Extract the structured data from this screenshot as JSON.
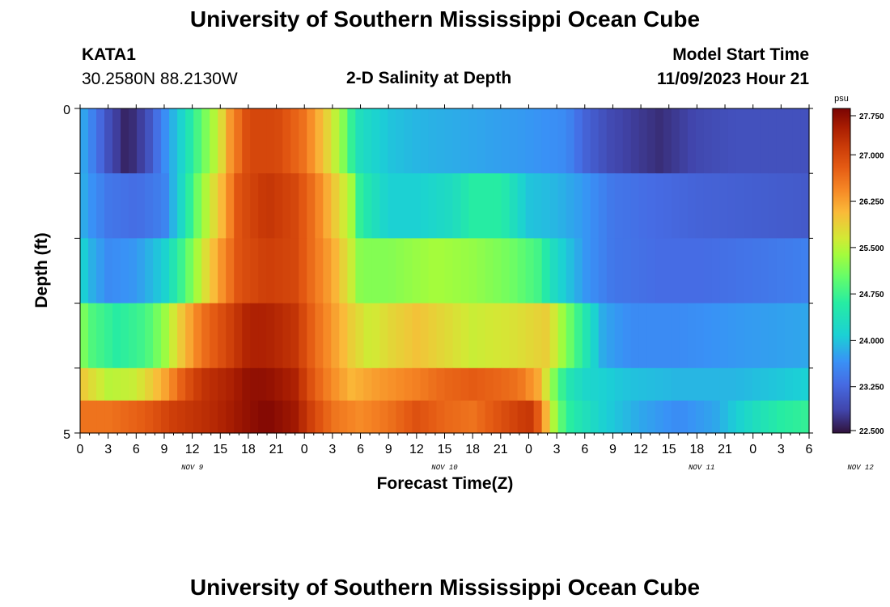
{
  "header": {
    "title": "University of Southern Mississippi Ocean Cube",
    "station": "KATA1",
    "coords": "30.2580N  88.2130W",
    "chart_title": "2-D Salinity at Depth",
    "model_start_label": "Model Start Time",
    "model_start_value": "11/09/2023 Hour 21"
  },
  "footer": {
    "title": "University of Southern Mississippi Ocean Cube"
  },
  "chart_data": {
    "type": "heatmap",
    "title": "2-D Salinity at Depth",
    "xlabel": "Forecast Time(Z)",
    "ylabel": "Depth (ft)",
    "colorbar_unit": "psu",
    "colorbar_ticks": [
      "27.750",
      "27.000",
      "26.250",
      "25.500",
      "24.750",
      "24.000",
      "23.250",
      "22.500"
    ],
    "color_range": [
      22.5,
      27.75
    ],
    "y_ticks": [
      "0",
      "5"
    ],
    "ylim": [
      0,
      5
    ],
    "x_tick_labels": [
      "0",
      "3",
      "6",
      "9",
      "12",
      "15",
      "18",
      "21",
      "0",
      "3",
      "6",
      "9",
      "12",
      "15",
      "18",
      "21",
      "0",
      "3",
      "6",
      "9",
      "12",
      "15",
      "18",
      "21",
      "0",
      "3",
      "6"
    ],
    "day_labels": [
      {
        "label": "NOV 9",
        "hour": 12
      },
      {
        "label": "NOV 10",
        "hour": 39
      },
      {
        "label": "NOV 11",
        "hour": 66.5
      },
      {
        "label": "NOV 12",
        "hour": 83.5
      }
    ],
    "x_hours": [
      0,
      78
    ],
    "rows": [
      {
        "depth_range": "0-1",
        "keyframes": [
          [
            0,
            23.9
          ],
          [
            1,
            23.6
          ],
          [
            3,
            23.0
          ],
          [
            5,
            22.6
          ],
          [
            7,
            22.9
          ],
          [
            9,
            23.6
          ],
          [
            11,
            24.2
          ],
          [
            13,
            25.0
          ],
          [
            15,
            25.7
          ],
          [
            16,
            26.3
          ],
          [
            18,
            27.0
          ],
          [
            21,
            27.0
          ],
          [
            24,
            26.6
          ],
          [
            26,
            26.0
          ],
          [
            28,
            25.3
          ],
          [
            29,
            24.7
          ],
          [
            30,
            24.3
          ],
          [
            33,
            24.0
          ],
          [
            36,
            23.9
          ],
          [
            42,
            23.8
          ],
          [
            48,
            23.7
          ],
          [
            52,
            23.6
          ],
          [
            54,
            23.2
          ],
          [
            57,
            22.9
          ],
          [
            62,
            22.7
          ],
          [
            66,
            22.9
          ],
          [
            70,
            23.0
          ],
          [
            78,
            23.0
          ]
        ]
      },
      {
        "depth_range": "1-2",
        "keyframes": [
          [
            0,
            23.9
          ],
          [
            1,
            23.7
          ],
          [
            3,
            23.4
          ],
          [
            6,
            23.3
          ],
          [
            9,
            23.5
          ],
          [
            11,
            24.3
          ],
          [
            13,
            25.3
          ],
          [
            15,
            26.0
          ],
          [
            17,
            26.9
          ],
          [
            20,
            27.2
          ],
          [
            23,
            27.0
          ],
          [
            25,
            26.6
          ],
          [
            27,
            26.0
          ],
          [
            29,
            25.4
          ],
          [
            30,
            24.6
          ],
          [
            33,
            24.1
          ],
          [
            36,
            24.1
          ],
          [
            40,
            24.3
          ],
          [
            42,
            24.6
          ],
          [
            45,
            24.6
          ],
          [
            48,
            24.0
          ],
          [
            51,
            23.9
          ],
          [
            54,
            23.7
          ],
          [
            57,
            23.4
          ],
          [
            61,
            23.3
          ],
          [
            66,
            23.2
          ],
          [
            78,
            23.1
          ]
        ]
      },
      {
        "depth_range": "2-3",
        "keyframes": [
          [
            0,
            24.2
          ],
          [
            1,
            23.9
          ],
          [
            3,
            23.6
          ],
          [
            6,
            23.7
          ],
          [
            9,
            24.1
          ],
          [
            11,
            24.8
          ],
          [
            13,
            25.6
          ],
          [
            15,
            26.3
          ],
          [
            17,
            26.9
          ],
          [
            20,
            27.1
          ],
          [
            23,
            27.0
          ],
          [
            25,
            26.6
          ],
          [
            27,
            26.2
          ],
          [
            29,
            25.6
          ],
          [
            30,
            25.2
          ],
          [
            33,
            25.2
          ],
          [
            38,
            25.4
          ],
          [
            42,
            25.3
          ],
          [
            46,
            25.1
          ],
          [
            49,
            24.8
          ],
          [
            51,
            24.2
          ],
          [
            54,
            23.7
          ],
          [
            57,
            23.4
          ],
          [
            62,
            23.3
          ],
          [
            67,
            23.3
          ],
          [
            73,
            23.4
          ],
          [
            78,
            23.5
          ]
        ]
      },
      {
        "depth_range": "3-4",
        "keyframes": [
          [
            0,
            25.3
          ],
          [
            1,
            24.9
          ],
          [
            4,
            24.6
          ],
          [
            7,
            24.8
          ],
          [
            9,
            25.3
          ],
          [
            11,
            26.0
          ],
          [
            13,
            26.6
          ],
          [
            15,
            26.9
          ],
          [
            18,
            27.4
          ],
          [
            20,
            27.4
          ],
          [
            23,
            27.2
          ],
          [
            25,
            26.7
          ],
          [
            27,
            26.3
          ],
          [
            29,
            25.9
          ],
          [
            31,
            25.6
          ],
          [
            33,
            25.8
          ],
          [
            36,
            26.0
          ],
          [
            39,
            25.8
          ],
          [
            42,
            25.6
          ],
          [
            46,
            25.7
          ],
          [
            50,
            25.9
          ],
          [
            52,
            25.2
          ],
          [
            54,
            24.5
          ],
          [
            56,
            23.8
          ],
          [
            59,
            23.6
          ],
          [
            64,
            23.6
          ],
          [
            70,
            23.7
          ],
          [
            78,
            23.8
          ]
        ]
      },
      {
        "depth_range": "4-5",
        "keyframes": [
          [
            0,
            26.0
          ],
          [
            1,
            25.8
          ],
          [
            3,
            25.5
          ],
          [
            6,
            25.6
          ],
          [
            9,
            26.2
          ],
          [
            11,
            26.8
          ],
          [
            13,
            27.2
          ],
          [
            16,
            27.4
          ],
          [
            18,
            27.6
          ],
          [
            20,
            27.6
          ],
          [
            23,
            27.4
          ],
          [
            25,
            26.8
          ],
          [
            27,
            26.4
          ],
          [
            29,
            26.1
          ],
          [
            32,
            26.3
          ],
          [
            36,
            26.5
          ],
          [
            39,
            26.7
          ],
          [
            42,
            26.8
          ],
          [
            45,
            26.7
          ],
          [
            47,
            26.6
          ],
          [
            49,
            26.2
          ],
          [
            50,
            25.6
          ],
          [
            51,
            25.0
          ],
          [
            52,
            24.5
          ],
          [
            54,
            24.2
          ],
          [
            58,
            24.0
          ],
          [
            64,
            23.9
          ],
          [
            70,
            23.9
          ],
          [
            78,
            24.1
          ]
        ]
      },
      {
        "depth_range": "5",
        "keyframes": [
          [
            0,
            26.6
          ],
          [
            3,
            26.6
          ],
          [
            7,
            26.8
          ],
          [
            10,
            27.1
          ],
          [
            14,
            27.3
          ],
          [
            18,
            27.6
          ],
          [
            20,
            27.7
          ],
          [
            23,
            27.5
          ],
          [
            25,
            27.0
          ],
          [
            27,
            26.6
          ],
          [
            30,
            26.4
          ],
          [
            33,
            26.6
          ],
          [
            36,
            26.9
          ],
          [
            39,
            26.7
          ],
          [
            42,
            26.6
          ],
          [
            45,
            26.9
          ],
          [
            48,
            27.2
          ],
          [
            49,
            26.8
          ],
          [
            50,
            26.0
          ],
          [
            51,
            25.2
          ],
          [
            52,
            24.7
          ],
          [
            53,
            24.5
          ],
          [
            56,
            24.1
          ],
          [
            60,
            23.8
          ],
          [
            64,
            23.6
          ],
          [
            68,
            23.8
          ],
          [
            72,
            24.3
          ],
          [
            75,
            24.6
          ],
          [
            78,
            24.7
          ]
        ]
      }
    ]
  }
}
